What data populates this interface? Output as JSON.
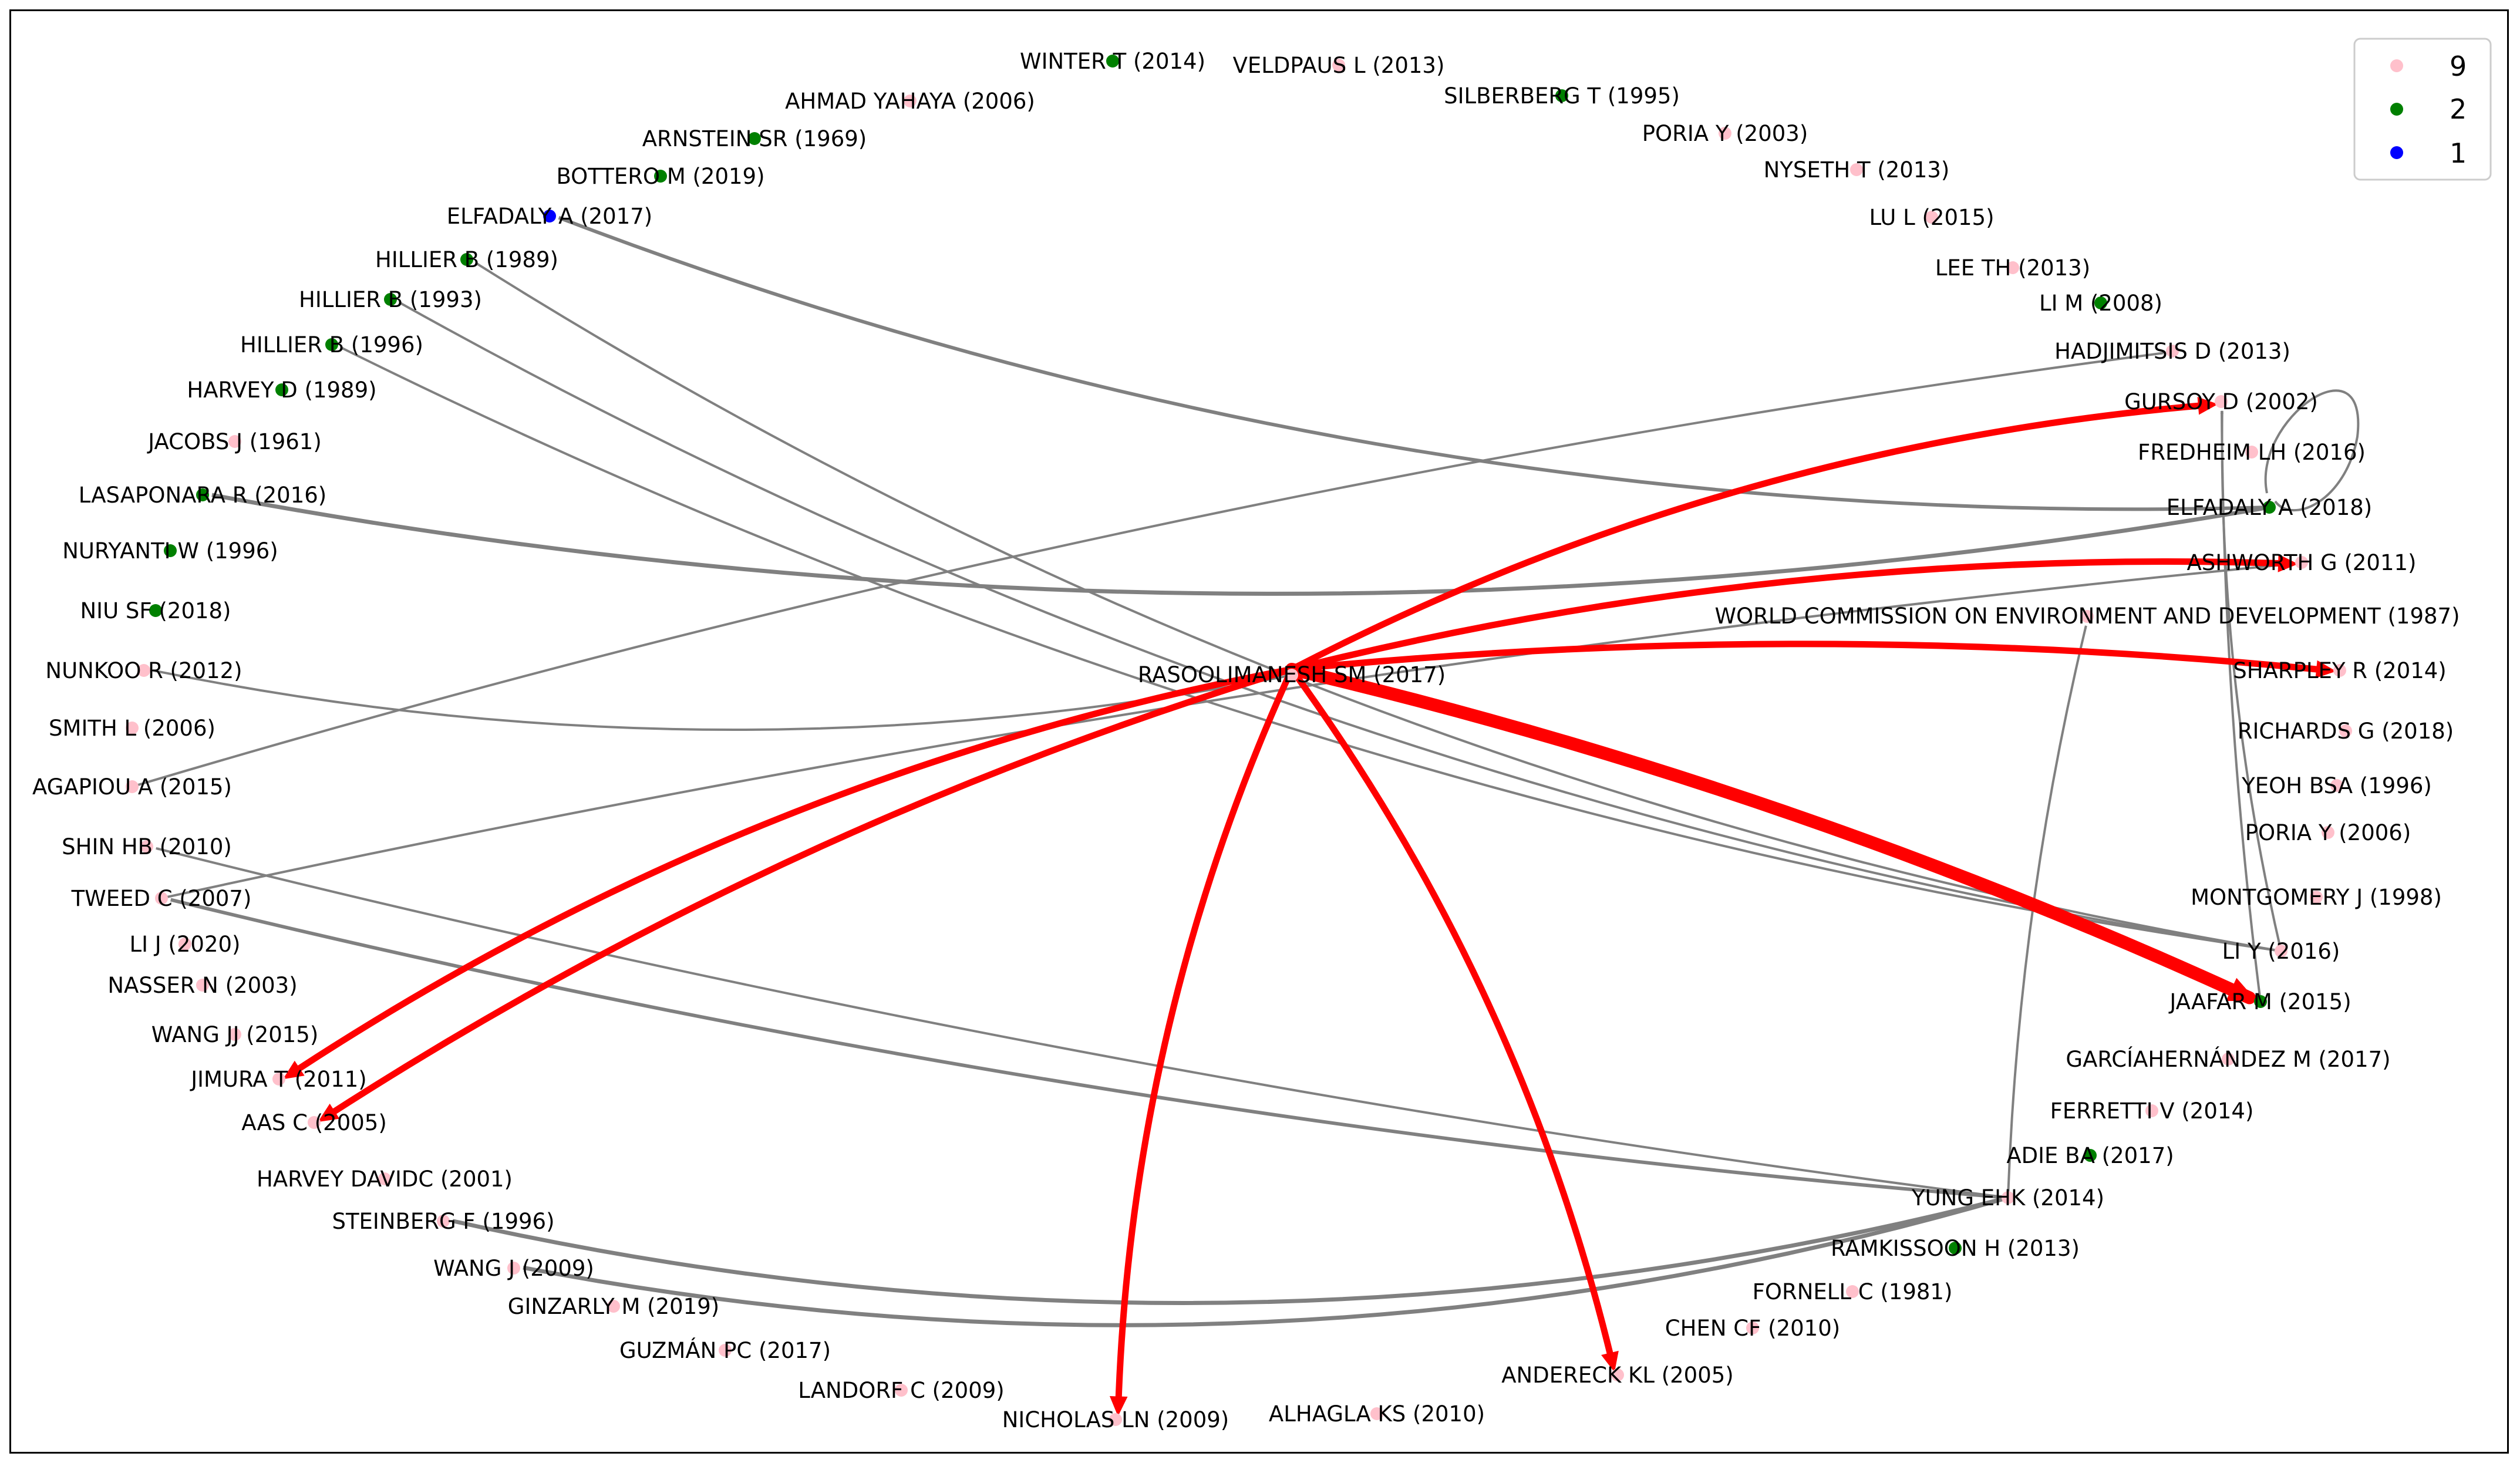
{
  "legend": {
    "items": [
      {
        "label": "9",
        "color": "#ffc0cb"
      },
      {
        "label": "2",
        "color": "#008000"
      },
      {
        "label": "1",
        "color": "#0000ff"
      }
    ]
  },
  "colors": {
    "pink": "#ffc0cb",
    "green": "#008000",
    "blue": "#0000ff",
    "grey_edge": "#808080",
    "red_edge": "#ff0000"
  },
  "nodes": [
    {
      "id": "winter",
      "label": "WINTER T (2014)",
      "color": "green"
    },
    {
      "id": "veldpaus",
      "label": "VELDPAUS L (2013)",
      "color": "pink"
    },
    {
      "id": "ahmad",
      "label": "AHMAD YAHAYA (2006)",
      "color": "pink"
    },
    {
      "id": "silberberg",
      "label": "SILBERBERG T (1995)",
      "color": "green"
    },
    {
      "id": "arnstein",
      "label": "ARNSTEIN SR (1969)",
      "color": "green"
    },
    {
      "id": "poria2003",
      "label": "PORIA Y (2003)",
      "color": "pink"
    },
    {
      "id": "bottero",
      "label": "BOTTERO M (2019)",
      "color": "green"
    },
    {
      "id": "nyseth",
      "label": "NYSETH T (2013)",
      "color": "pink"
    },
    {
      "id": "elfadaly2017",
      "label": "ELFADALY A (2017)",
      "color": "blue"
    },
    {
      "id": "lul",
      "label": "LU L (2015)",
      "color": "pink"
    },
    {
      "id": "hillier1989",
      "label": "HILLIER B (1989)",
      "color": "green"
    },
    {
      "id": "leeth",
      "label": "LEE TH (2013)",
      "color": "pink"
    },
    {
      "id": "hillier1993",
      "label": "HILLIER B (1993)",
      "color": "green"
    },
    {
      "id": "lim",
      "label": "LI M (2008)",
      "color": "green"
    },
    {
      "id": "hillier1996",
      "label": "HILLIER B (1996)",
      "color": "green"
    },
    {
      "id": "hadjimitsis",
      "label": "HADJIMITSIS D (2013)",
      "color": "pink"
    },
    {
      "id": "harvey1989",
      "label": "HARVEY D (1989)",
      "color": "green"
    },
    {
      "id": "gursoy",
      "label": "GURSOY D (2002)",
      "color": "pink"
    },
    {
      "id": "jacobs",
      "label": "JACOBS J (1961)",
      "color": "pink"
    },
    {
      "id": "fredheim",
      "label": "FREDHEIM LH (2016)",
      "color": "pink"
    },
    {
      "id": "lasaponara",
      "label": "LASAPONARA R (2016)",
      "color": "green"
    },
    {
      "id": "elfadaly2018",
      "label": "ELFADALY A (2018)",
      "color": "green"
    },
    {
      "id": "nuryanti",
      "label": "NURYANTI W (1996)",
      "color": "green"
    },
    {
      "id": "ashworth",
      "label": "ASHWORTH G (2011)",
      "color": "pink"
    },
    {
      "id": "niu",
      "label": "NIU SF (2018)",
      "color": "green"
    },
    {
      "id": "wced",
      "label": "WORLD COMMISSION ON ENVIRONMENT AND DEVELOPMENT (1987)",
      "color": "pink"
    },
    {
      "id": "nunkoo",
      "label": "NUNKOO R (2012)",
      "color": "pink"
    },
    {
      "id": "rasoolimanesh",
      "label": "RASOOLIMANESH SM (2017)",
      "color": "pink"
    },
    {
      "id": "sharpley",
      "label": "SHARPLEY R (2014)",
      "color": "pink"
    },
    {
      "id": "smith",
      "label": "SMITH L (2006)",
      "color": "pink"
    },
    {
      "id": "richards",
      "label": "RICHARDS G (2018)",
      "color": "pink"
    },
    {
      "id": "agapiou",
      "label": "AGAPIOU A (2015)",
      "color": "pink"
    },
    {
      "id": "yeoh",
      "label": "YEOH BSA (1996)",
      "color": "pink"
    },
    {
      "id": "poria2006",
      "label": "PORIA Y (2006)",
      "color": "pink"
    },
    {
      "id": "shin",
      "label": "SHIN HB (2010)",
      "color": "pink"
    },
    {
      "id": "tweed",
      "label": "TWEED C (2007)",
      "color": "pink"
    },
    {
      "id": "montgomery",
      "label": "MONTGOMERY J (1998)",
      "color": "pink"
    },
    {
      "id": "lij",
      "label": "LI J (2020)",
      "color": "pink"
    },
    {
      "id": "liy",
      "label": "LI Y (2016)",
      "color": "pink"
    },
    {
      "id": "nasser",
      "label": "NASSER N (2003)",
      "color": "pink"
    },
    {
      "id": "jaafar",
      "label": "JAAFAR M (2015)",
      "color": "green"
    },
    {
      "id": "wangjj",
      "label": "WANG JJ (2015)",
      "color": "pink"
    },
    {
      "id": "garcia",
      "label": "GARCÍAHERNÁNDEZ M (2017)",
      "color": "pink"
    },
    {
      "id": "jimura",
      "label": "JIMURA T (2011)",
      "color": "pink"
    },
    {
      "id": "ferretti",
      "label": "FERRETTI V (2014)",
      "color": "pink"
    },
    {
      "id": "aas",
      "label": "AAS C (2005)",
      "color": "pink"
    },
    {
      "id": "adie",
      "label": "ADIE BA (2017)",
      "color": "green"
    },
    {
      "id": "harveydavidc",
      "label": "HARVEY DAVIDC (2001)",
      "color": "pink"
    },
    {
      "id": "yung",
      "label": "YUNG EHK (2014)",
      "color": "pink"
    },
    {
      "id": "steinberg",
      "label": "STEINBERG F (1996)",
      "color": "pink"
    },
    {
      "id": "ramkissoon",
      "label": "RAMKISSOON H (2013)",
      "color": "green"
    },
    {
      "id": "wangj",
      "label": "WANG J (2009)",
      "color": "pink"
    },
    {
      "id": "fornell",
      "label": "FORNELL C (1981)",
      "color": "pink"
    },
    {
      "id": "ginzarly",
      "label": "GINZARLY M (2019)",
      "color": "pink"
    },
    {
      "id": "chen",
      "label": "CHEN CF (2010)",
      "color": "pink"
    },
    {
      "id": "guzman",
      "label": "GUZMÁN PC (2017)",
      "color": "pink"
    },
    {
      "id": "andereck",
      "label": "ANDERECK KL (2005)",
      "color": "pink"
    },
    {
      "id": "landorf",
      "label": "LANDORF C (2009)",
      "color": "pink"
    },
    {
      "id": "nicholas",
      "label": "NICHOLAS LN (2009)",
      "color": "pink"
    },
    {
      "id": "alhaglaks",
      "label": "ALHAGLA KS (2010)",
      "color": "pink"
    }
  ]
}
